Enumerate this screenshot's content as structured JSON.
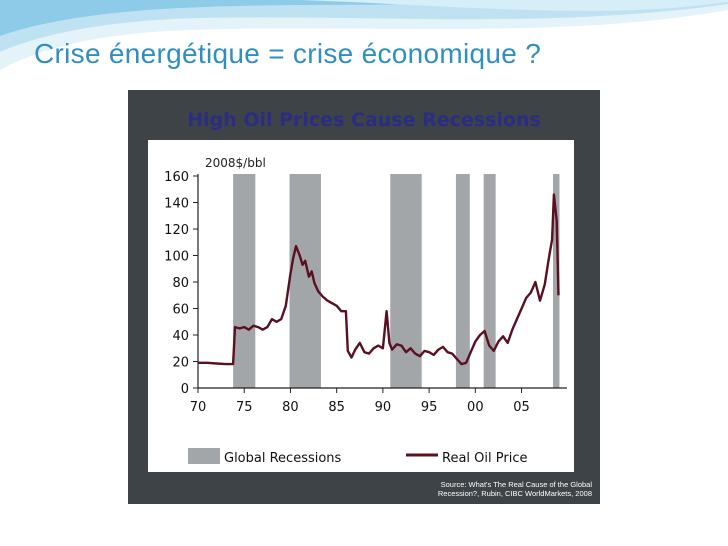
{
  "slide": {
    "title": "Crise énergétique = crise économique ?"
  },
  "colors": {
    "title": "#2f8fbf",
    "frame_bg": "#3e4347",
    "chart_title": "#2a2d82",
    "recession_fill": "#a3a6a9",
    "oil_line": "#5a1020",
    "wave_light": "#cfe9f5",
    "wave_mid": "#8dcbe8"
  },
  "chart_data": {
    "type": "line",
    "title": "High Oil Prices Cause Recessions",
    "ylabel": "2008$/bbl",
    "xlabel": "",
    "ylim": [
      0,
      160
    ],
    "xlim": [
      1970,
      2009.7
    ],
    "y_ticks": [
      0,
      20,
      40,
      60,
      80,
      100,
      120,
      140,
      160
    ],
    "x_ticks": [
      {
        "value": 1970,
        "label": "70"
      },
      {
        "value": 1975,
        "label": "75"
      },
      {
        "value": 1980,
        "label": "80"
      },
      {
        "value": 1985,
        "label": "85"
      },
      {
        "value": 1990,
        "label": "90"
      },
      {
        "value": 1995,
        "label": "95"
      },
      {
        "value": 2000,
        "label": "00"
      },
      {
        "value": 2005,
        "label": "05"
      }
    ],
    "recessions": [
      {
        "start": 1973.8,
        "end": 1976.2
      },
      {
        "start": 1979.9,
        "end": 1983.3
      },
      {
        "start": 1990.8,
        "end": 1994.2
      },
      {
        "start": 1997.9,
        "end": 1999.4
      },
      {
        "start": 2000.9,
        "end": 2002.2
      },
      {
        "start": 2008.4,
        "end": 2009.1
      }
    ],
    "series": [
      {
        "name": "Real Oil Price",
        "points": [
          [
            1970.0,
            19
          ],
          [
            1971.0,
            19
          ],
          [
            1972.0,
            18.5
          ],
          [
            1973.0,
            18
          ],
          [
            1973.8,
            18
          ],
          [
            1974.0,
            46
          ],
          [
            1974.5,
            45
          ],
          [
            1975.0,
            46
          ],
          [
            1975.5,
            44
          ],
          [
            1976.0,
            47
          ],
          [
            1976.5,
            46
          ],
          [
            1977.0,
            44
          ],
          [
            1977.5,
            46
          ],
          [
            1978.0,
            52
          ],
          [
            1978.5,
            50
          ],
          [
            1979.0,
            52
          ],
          [
            1979.5,
            62
          ],
          [
            1980.0,
            86
          ],
          [
            1980.3,
            98
          ],
          [
            1980.6,
            107
          ],
          [
            1981.0,
            100
          ],
          [
            1981.3,
            93
          ],
          [
            1981.6,
            96
          ],
          [
            1982.0,
            84
          ],
          [
            1982.3,
            88
          ],
          [
            1982.6,
            79
          ],
          [
            1983.0,
            73
          ],
          [
            1983.5,
            69
          ],
          [
            1984.0,
            66
          ],
          [
            1984.5,
            64
          ],
          [
            1985.0,
            62
          ],
          [
            1985.5,
            58
          ],
          [
            1986.0,
            58
          ],
          [
            1986.2,
            28
          ],
          [
            1986.6,
            23
          ],
          [
            1987.0,
            29
          ],
          [
            1987.5,
            34
          ],
          [
            1988.0,
            27
          ],
          [
            1988.5,
            26
          ],
          [
            1989.0,
            30
          ],
          [
            1989.5,
            32
          ],
          [
            1990.0,
            30
          ],
          [
            1990.4,
            58
          ],
          [
            1990.7,
            34
          ],
          [
            1991.0,
            29
          ],
          [
            1991.5,
            33
          ],
          [
            1992.0,
            32
          ],
          [
            1992.5,
            27
          ],
          [
            1993.0,
            30
          ],
          [
            1993.5,
            26
          ],
          [
            1994.0,
            24
          ],
          [
            1994.5,
            28
          ],
          [
            1995.0,
            27
          ],
          [
            1995.5,
            25
          ],
          [
            1996.0,
            29
          ],
          [
            1996.5,
            31
          ],
          [
            1997.0,
            27
          ],
          [
            1997.5,
            26
          ],
          [
            1998.0,
            22
          ],
          [
            1998.5,
            18
          ],
          [
            1999.0,
            19
          ],
          [
            1999.5,
            27
          ],
          [
            2000.0,
            35
          ],
          [
            2000.5,
            40
          ],
          [
            2001.0,
            43
          ],
          [
            2001.5,
            32
          ],
          [
            2002.0,
            28
          ],
          [
            2002.5,
            35
          ],
          [
            2003.0,
            39
          ],
          [
            2003.5,
            34
          ],
          [
            2004.0,
            44
          ],
          [
            2004.5,
            52
          ],
          [
            2005.0,
            60
          ],
          [
            2005.5,
            68
          ],
          [
            2006.0,
            72
          ],
          [
            2006.5,
            80
          ],
          [
            2007.0,
            66
          ],
          [
            2007.5,
            78
          ],
          [
            2008.0,
            100
          ],
          [
            2008.3,
            112
          ],
          [
            2008.5,
            146
          ],
          [
            2008.8,
            126
          ],
          [
            2009.0,
            70
          ]
        ]
      }
    ],
    "legend": [
      {
        "label": "Global Recessions",
        "kind": "swatch"
      },
      {
        "label": "Real Oil Price",
        "kind": "line"
      }
    ],
    "legend_position": "bottom",
    "source_lines": [
      "Source: What's The Real Cause of the Global",
      "Recession?, Rubin, CIBC WorldMarkets, 2008"
    ]
  }
}
